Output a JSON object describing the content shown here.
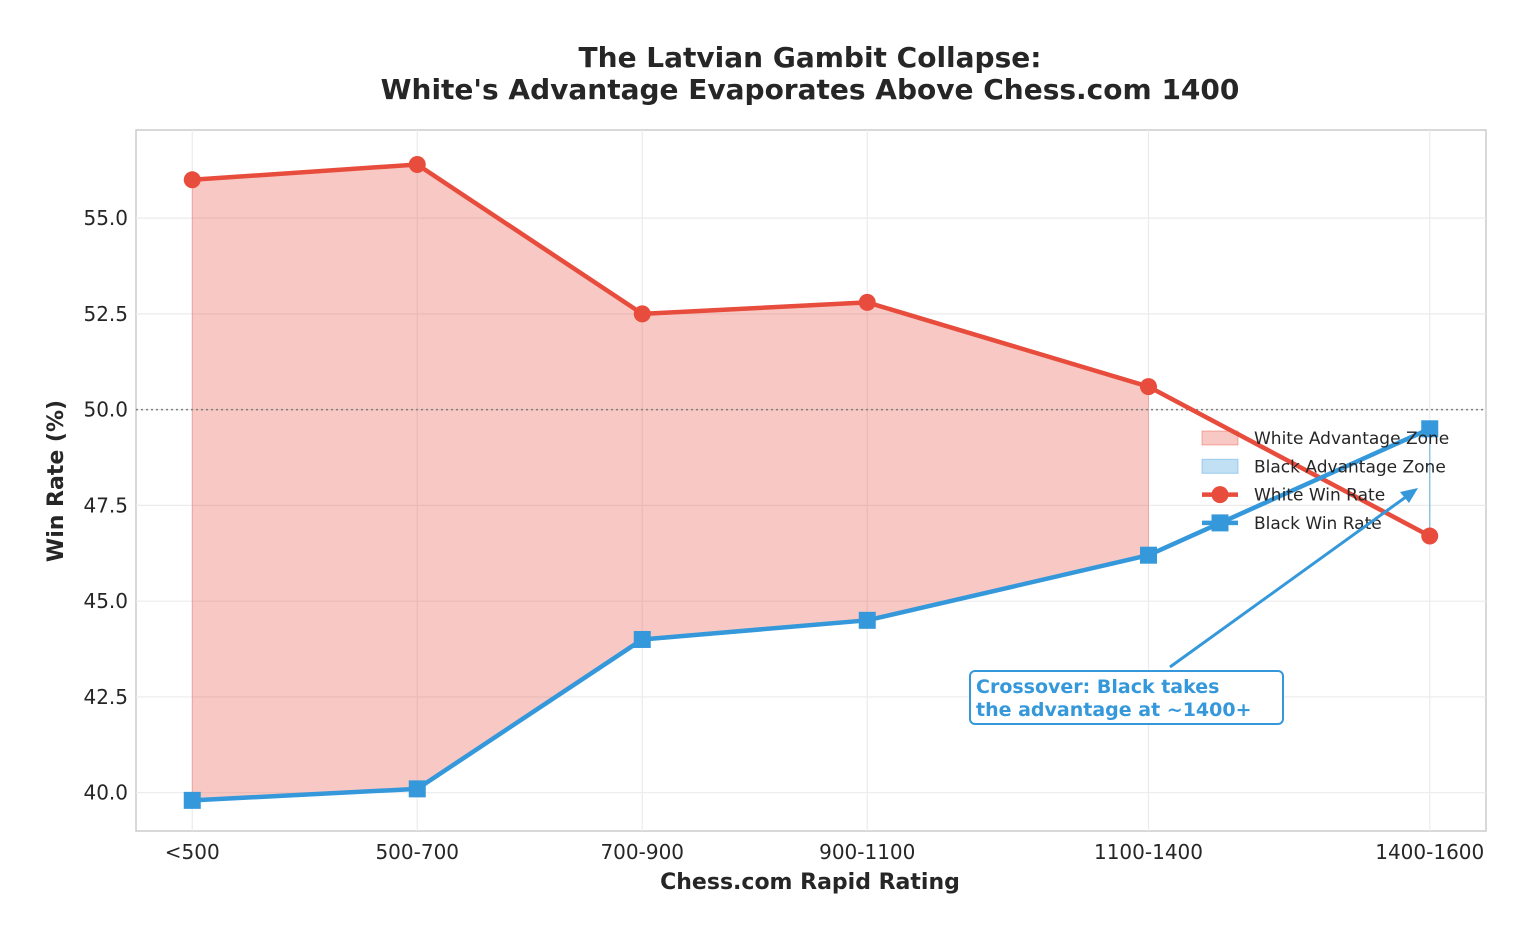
{
  "chart_data": {
    "type": "line",
    "title_lines": [
      "The Latvian Gambit Collapse:",
      "White's Advantage Evaporates Above Chess.com 1400"
    ],
    "xlabel": "Chess.com Rapid Rating",
    "ylabel": "Win Rate (%)",
    "categories": [
      "<500",
      "500-700",
      "700-900",
      "900-1100",
      "1100-1400",
      "1400-1600"
    ],
    "x_positions": [
      400,
      600,
      800,
      1000,
      1250,
      1500
    ],
    "xlim": [
      350,
      1550
    ],
    "ylim": [
      39.0,
      57.3
    ],
    "yticks": [
      40.0,
      42.5,
      45.0,
      47.5,
      50.0,
      52.5,
      55.0
    ],
    "reference_line": 50.0,
    "grid": true,
    "legend_position": "center-right",
    "series": [
      {
        "name": "White Win Rate",
        "color": "#e74c3c",
        "marker": "circle",
        "values": [
          56.0,
          56.4,
          52.5,
          52.8,
          50.6,
          46.7
        ]
      },
      {
        "name": "Black Win Rate",
        "color": "#3498db",
        "marker": "square",
        "values": [
          39.8,
          40.1,
          44.0,
          44.5,
          46.2,
          49.5
        ]
      }
    ],
    "fills": [
      {
        "name": "White Advantage Zone",
        "color": "#e74c3c"
      },
      {
        "name": "Black Advantage Zone",
        "color": "#3498db"
      }
    ],
    "annotation": {
      "lines": [
        "Crossover: Black takes",
        "the advantage at ~1400+"
      ],
      "color": "#3498db"
    }
  }
}
